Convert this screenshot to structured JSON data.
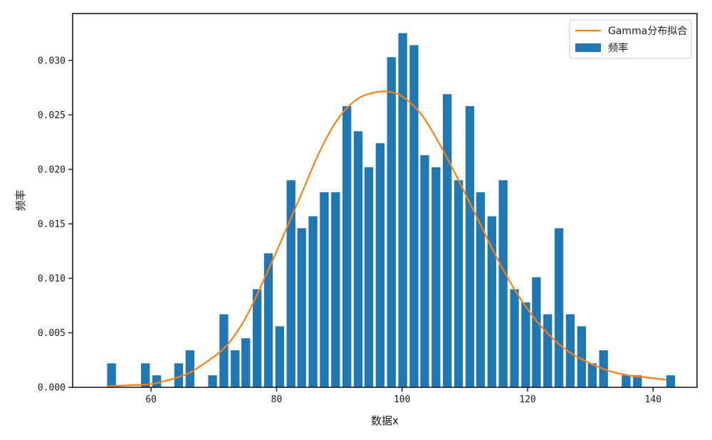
{
  "chart_data": {
    "type": "bar",
    "xlabel": "数据x",
    "ylabel": "频率",
    "xlim": [
      47.5,
      147
    ],
    "ylim": [
      0,
      0.0343
    ],
    "x_ticks": [
      60,
      80,
      100,
      120,
      140
    ],
    "y_ticks": [
      0.0,
      0.005,
      0.01,
      0.015,
      0.02,
      0.025,
      0.03
    ],
    "x_tick_labels": [
      "60",
      "80",
      "100",
      "120",
      "140"
    ],
    "y_tick_labels": [
      "0.000",
      "0.005",
      "0.010",
      "0.015",
      "0.020",
      "0.025",
      "0.030"
    ],
    "bar_width": 1.4,
    "bar_color": "#1f77b4",
    "line_color": "#ff7f0e",
    "legend": {
      "position": "top-right",
      "line_label": "Gamma分布拟合",
      "bar_label": "频率"
    },
    "bars": {
      "name": "频率",
      "x": [
        53.7,
        59.1,
        60.9,
        64.4,
        66.2,
        69.8,
        71.6,
        73.4,
        75.1,
        76.9,
        78.7,
        80.5,
        82.3,
        84.0,
        85.8,
        87.6,
        89.4,
        91.2,
        93.0,
        94.7,
        96.5,
        98.3,
        100.1,
        101.9,
        103.6,
        105.4,
        107.2,
        109.0,
        110.8,
        112.5,
        114.3,
        116.1,
        117.9,
        119.7,
        121.4,
        123.2,
        125.0,
        126.8,
        128.6,
        130.3,
        132.1,
        135.7,
        137.5,
        142.8
      ],
      "values": [
        0.0022,
        0.0022,
        0.0011,
        0.0022,
        0.0034,
        0.0011,
        0.0067,
        0.0034,
        0.0045,
        0.009,
        0.0123,
        0.0056,
        0.019,
        0.0146,
        0.0157,
        0.0179,
        0.0179,
        0.0258,
        0.0235,
        0.0202,
        0.0224,
        0.0303,
        0.0325,
        0.0314,
        0.0213,
        0.0202,
        0.0269,
        0.019,
        0.0258,
        0.0179,
        0.0157,
        0.019,
        0.009,
        0.0078,
        0.0101,
        0.0067,
        0.0146,
        0.0067,
        0.0056,
        0.0022,
        0.0034,
        0.0011,
        0.0011,
        0.0011
      ]
    },
    "line": {
      "name": "Gamma分布拟合",
      "x": [
        53,
        57,
        60,
        63,
        66,
        69,
        72,
        75,
        78,
        81,
        84,
        87,
        90,
        93,
        96,
        98,
        100,
        103,
        106,
        109,
        112,
        115,
        118,
        121,
        124,
        127,
        130,
        133,
        136,
        139,
        142
      ],
      "y": [
        0.0001,
        0.0002,
        0.0003,
        0.0007,
        0.0013,
        0.0024,
        0.0038,
        0.0063,
        0.0099,
        0.0138,
        0.0178,
        0.0218,
        0.0248,
        0.0265,
        0.0271,
        0.0271,
        0.0267,
        0.0251,
        0.0223,
        0.019,
        0.0155,
        0.012,
        0.0089,
        0.0064,
        0.0045,
        0.0031,
        0.0022,
        0.0015,
        0.0011,
        0.0009,
        0.0007
      ]
    }
  }
}
